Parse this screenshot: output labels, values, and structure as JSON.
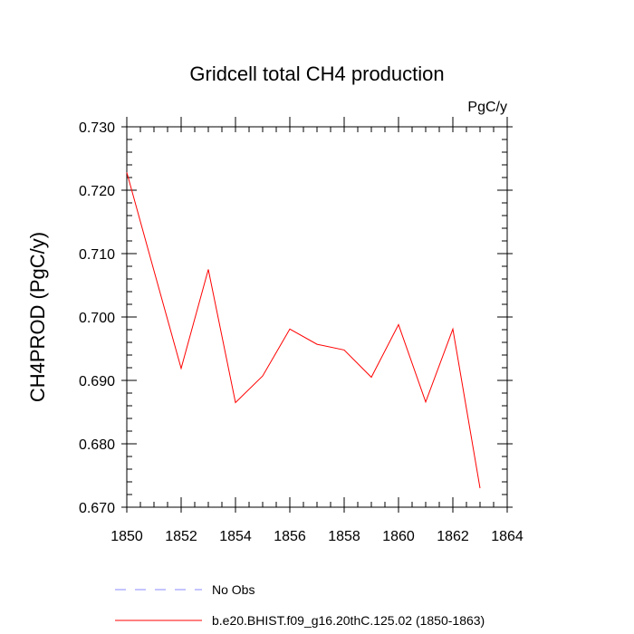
{
  "chart_data": {
    "type": "line",
    "title": "Gridcell total CH4 production",
    "units_label": "PgC/y",
    "xlabel": "",
    "ylabel": "CH4PROD  (PgC/y)",
    "xlim": [
      1850,
      1864
    ],
    "ylim": [
      0.67,
      0.73
    ],
    "xticks": [
      1850,
      1852,
      1854,
      1856,
      1858,
      1860,
      1862,
      1864
    ],
    "yticks": [
      "0.670",
      "0.680",
      "0.690",
      "0.700",
      "0.710",
      "0.720",
      "0.730"
    ],
    "grid": false,
    "legend_position": "bottom",
    "series": [
      {
        "name": "b.e20.BHIST.f09_g16.20thC.125.02 (1850-1863)",
        "color": "#ff0000",
        "style": "solid",
        "x": [
          1850,
          1851,
          1852,
          1853,
          1854,
          1855,
          1856,
          1857,
          1858,
          1859,
          1860,
          1861,
          1862,
          1863
        ],
        "y": [
          0.7228,
          0.7073,
          0.6919,
          0.7075,
          0.6865,
          0.6907,
          0.6981,
          0.6957,
          0.6948,
          0.6905,
          0.6988,
          0.6866,
          0.6981,
          0.673
        ]
      },
      {
        "name": "No Obs",
        "color": "#8888ff",
        "style": "dashed",
        "x": [],
        "y": []
      }
    ]
  }
}
